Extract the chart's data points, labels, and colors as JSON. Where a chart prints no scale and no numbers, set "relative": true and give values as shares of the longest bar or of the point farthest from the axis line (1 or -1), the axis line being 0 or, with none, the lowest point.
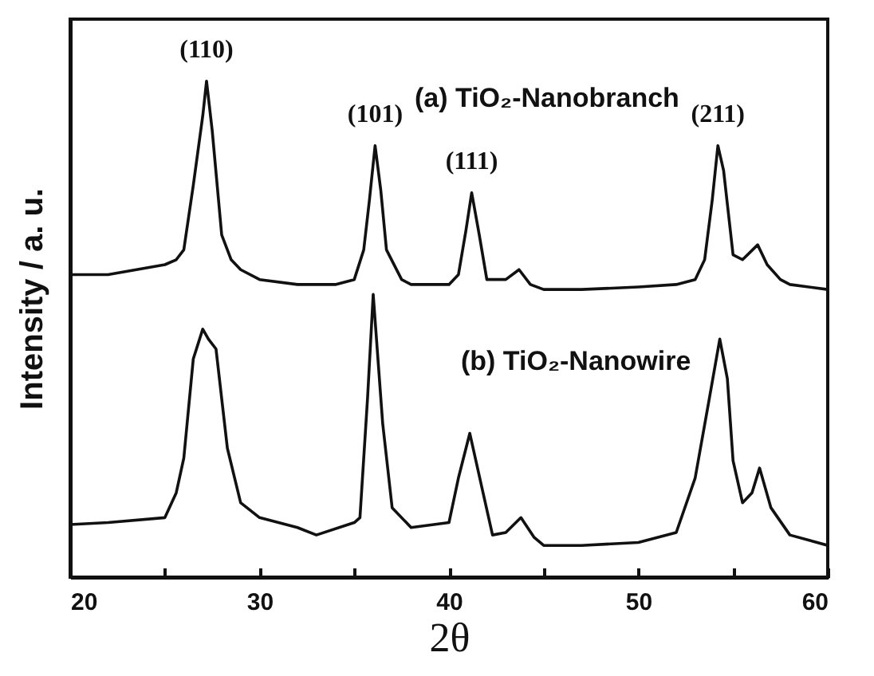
{
  "chart_data": {
    "type": "line",
    "relative": true,
    "xlabel": "2θ",
    "ylabel": "Intensity / a. u.",
    "tick_labels": "x",
    "xlim": [
      20,
      60
    ],
    "xticks": [
      20,
      {
        "value": 25,
        "label": null
      },
      30,
      {
        "value": 35,
        "label": null
      },
      40,
      {
        "value": 45,
        "label": null
      },
      50,
      {
        "value": 55,
        "label": null
      },
      60
    ],
    "series": [
      {
        "name": "(a) TiO₂-Nanobranch",
        "color": "#111111",
        "x": [
          20,
          22,
          25,
          25.6,
          26,
          26.5,
          27,
          27.2,
          27.5,
          28,
          28.5,
          29,
          30,
          32,
          33,
          34,
          35,
          35.5,
          35.8,
          36.1,
          36.4,
          36.7,
          37.5,
          38,
          40,
          40.5,
          40.9,
          41.2,
          41.6,
          42,
          43,
          43.7,
          44.3,
          45,
          47,
          50,
          52,
          53,
          53.5,
          53.9,
          54.2,
          54.5,
          55,
          55.5,
          56.3,
          56.8,
          57.5,
          58,
          60
        ],
        "values": [
          0.61,
          0.61,
          0.63,
          0.64,
          0.66,
          0.79,
          0.93,
          1.0,
          0.9,
          0.69,
          0.64,
          0.62,
          0.6,
          0.59,
          0.59,
          0.59,
          0.6,
          0.66,
          0.76,
          0.87,
          0.78,
          0.66,
          0.6,
          0.59,
          0.59,
          0.61,
          0.7,
          0.775,
          0.69,
          0.6,
          0.6,
          0.62,
          0.59,
          0.58,
          0.58,
          0.585,
          0.59,
          0.6,
          0.64,
          0.76,
          0.87,
          0.82,
          0.65,
          0.64,
          0.67,
          0.63,
          0.6,
          0.59,
          0.58
        ]
      },
      {
        "name": "(b) TiO₂-Nanowire",
        "color": "#111111",
        "x": [
          20,
          22,
          25,
          25.6,
          26,
          26.5,
          27,
          27.3,
          27.7,
          28,
          28.3,
          29,
          30,
          32,
          33,
          35,
          35.3,
          35.7,
          36,
          36.5,
          37,
          38,
          40,
          40.5,
          41.1,
          41.8,
          42.3,
          43,
          43.8,
          44.5,
          45,
          47,
          50,
          52,
          53,
          53.7,
          54.3,
          54.7,
          55,
          55.5,
          56,
          56.4,
          57,
          58,
          60
        ],
        "values": [
          0.106,
          0.11,
          0.12,
          0.17,
          0.24,
          0.44,
          0.5,
          0.48,
          0.46,
          0.36,
          0.26,
          0.15,
          0.12,
          0.1,
          0.085,
          0.11,
          0.12,
          0.36,
          0.57,
          0.31,
          0.14,
          0.1,
          0.11,
          0.2,
          0.29,
          0.17,
          0.085,
          0.09,
          0.12,
          0.08,
          0.064,
          0.064,
          0.07,
          0.09,
          0.2,
          0.35,
          0.48,
          0.4,
          0.235,
          0.15,
          0.17,
          0.22,
          0.14,
          0.085,
          0.064
        ]
      }
    ],
    "annotations": [
      {
        "text": "(110)",
        "x": 27.2,
        "y": 1.0
      },
      {
        "text": "(101)",
        "x": 36.1,
        "y": 0.87
      },
      {
        "text": "(111)",
        "x": 41.2,
        "y": 0.775
      },
      {
        "text": "(211)",
        "x": 54.2,
        "y": 0.87
      }
    ]
  }
}
